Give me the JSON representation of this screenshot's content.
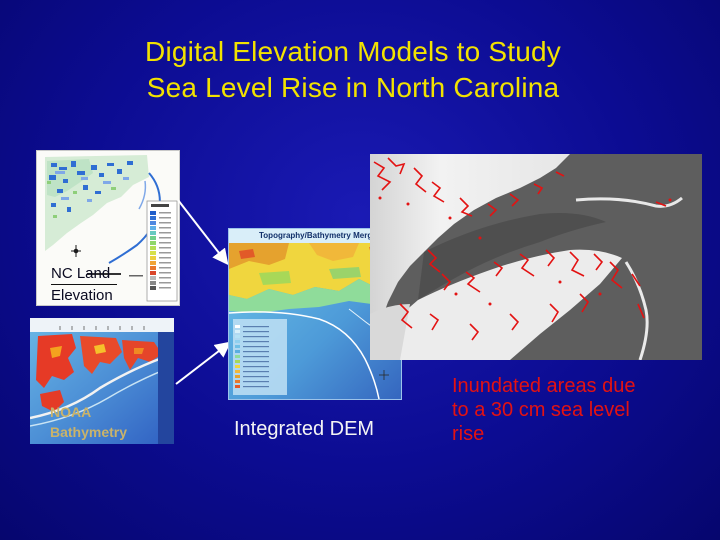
{
  "slide": {
    "title_line1": "Digital Elevation Models to Study",
    "title_line2": "Sea Level Rise in North Carolina",
    "nc_land": {
      "line1": "NC Land",
      "line2": "Elevation"
    },
    "noaa": {
      "line1": "NOAA",
      "line2": "Bathymetry"
    },
    "integrated_dem": "Integrated DEM",
    "merge_map_title": "Topography/Bathymetry Merge",
    "inundated": {
      "line1": "Inundated areas due",
      "line2": "to a 30 cm sea level",
      "line3": "rise"
    }
  },
  "colors": {
    "title": "#f2e200",
    "inundation": "#e31212",
    "label": "#f4f4f4",
    "background": "#0c0c92"
  }
}
